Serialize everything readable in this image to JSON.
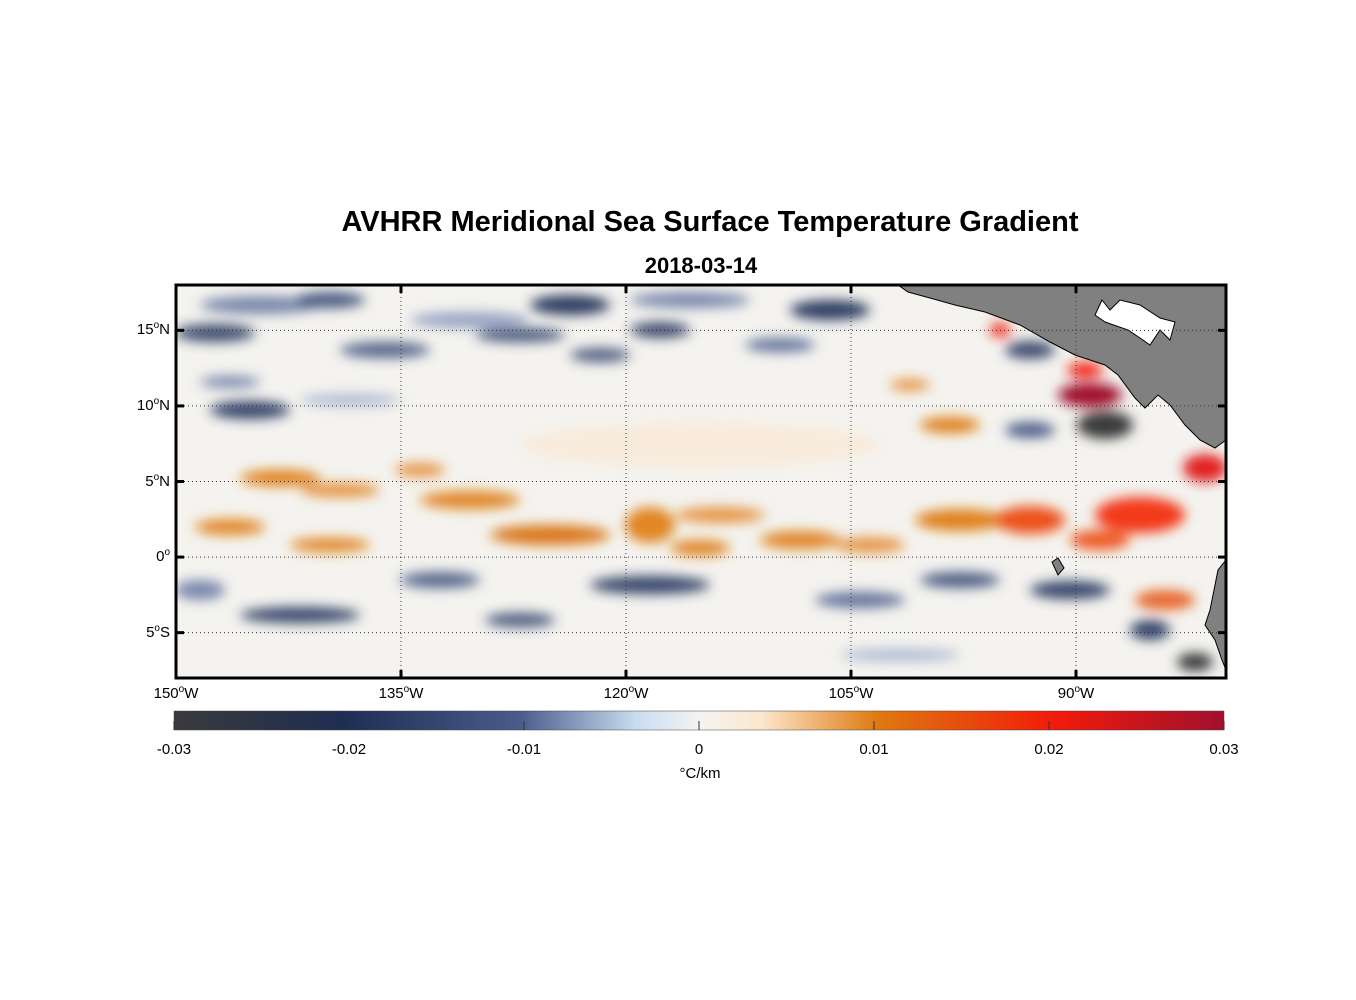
{
  "title": "AVHRR Meridional Sea Surface Temperature Gradient",
  "subtitle": "2018-03-14",
  "lat_labels": [
    {
      "deg": "15",
      "sup": "o",
      "hem": "N",
      "lat": 15
    },
    {
      "deg": "10",
      "sup": "o",
      "hem": "N",
      "lat": 10
    },
    {
      "deg": "5",
      "sup": "o",
      "hem": "N",
      "lat": 5
    },
    {
      "deg": "0",
      "sup": "o",
      "hem": "",
      "lat": 0
    },
    {
      "deg": "5",
      "sup": "o",
      "hem": "S",
      "lat": -5
    }
  ],
  "lon_labels": [
    {
      "deg": "150",
      "sup": "o",
      "hem": "W",
      "lon": -150
    },
    {
      "deg": "135",
      "sup": "o",
      "hem": "W",
      "lon": -135
    },
    {
      "deg": "120",
      "sup": "o",
      "hem": "W",
      "lon": -120
    },
    {
      "deg": "105",
      "sup": "o",
      "hem": "W",
      "lon": -105
    },
    {
      "deg": "90",
      "sup": "o",
      "hem": "W",
      "lon": -90
    }
  ],
  "extent": {
    "lon_min": -150,
    "lon_max": -80,
    "lat_min": -8,
    "lat_max": 18
  },
  "colorbar": {
    "ticks": [
      "-0.03",
      "-0.02",
      "-0.01",
      "0",
      "0.01",
      "0.02",
      "0.03"
    ],
    "min": -0.03,
    "max": 0.03,
    "units": "°C/km",
    "colors": [
      "#3a3a3c",
      "#1e2d52",
      "#4a5c8c",
      "#c8dcf0",
      "#f4f4f2",
      "#fce6cc",
      "#de7a10",
      "#f21a0a",
      "#a0102e"
    ]
  },
  "colors": {
    "land": "#808080",
    "grid": "#333333",
    "frame": "#000000"
  }
}
